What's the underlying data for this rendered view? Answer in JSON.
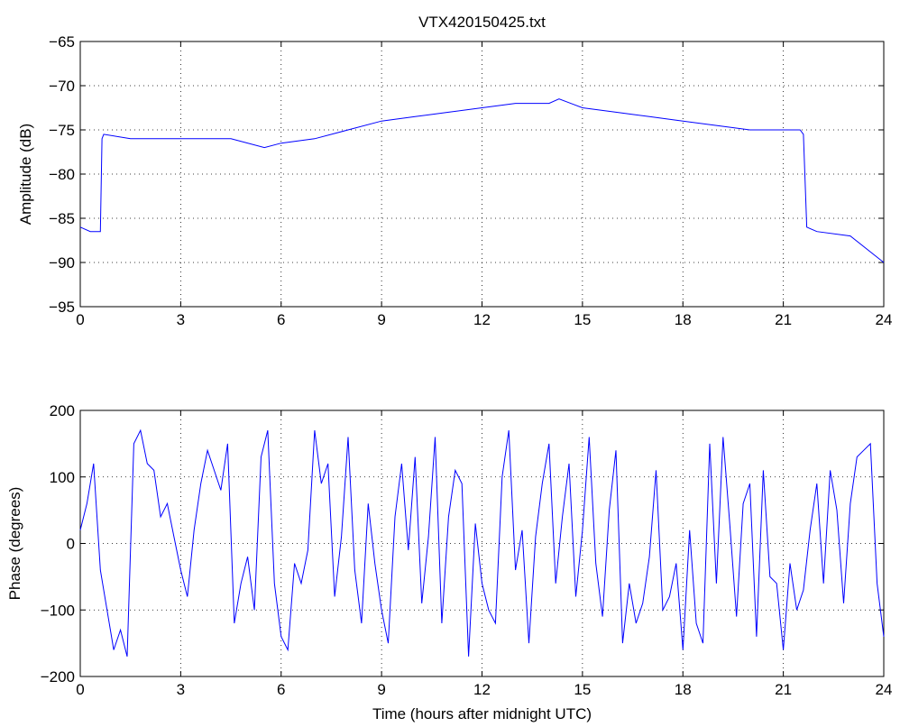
{
  "chart_data": [
    {
      "type": "line",
      "title": "VTX420150425.txt",
      "xlabel": "",
      "ylabel": "Amplitude (dB)",
      "xlim": [
        0,
        24
      ],
      "ylim": [
        -95,
        -65
      ],
      "x_ticks": [
        "0",
        "3",
        "6",
        "9",
        "12",
        "15",
        "18",
        "21",
        "24"
      ],
      "y_ticks": [
        "-95",
        "-90",
        "-85",
        "-80",
        "-75",
        "-70",
        "-65"
      ],
      "grid": true,
      "line_color": "#0000ff",
      "x": [
        0,
        0.3,
        0.6,
        0.65,
        0.7,
        1.5,
        3,
        4.5,
        5.5,
        6,
        7,
        8,
        9,
        10,
        11,
        12,
        13,
        14,
        14.3,
        15,
        16,
        17,
        18,
        19,
        20,
        21,
        21.5,
        21.6,
        21.7,
        22,
        23,
        24
      ],
      "y": [
        -86,
        -86.5,
        -86.5,
        -76,
        -75.5,
        -76,
        -76,
        -76,
        -77,
        -76.5,
        -76,
        -75,
        -74,
        -73.5,
        -73,
        -72.5,
        -72,
        -72,
        -71.5,
        -72.5,
        -73,
        -73.5,
        -74,
        -74.5,
        -75,
        -75,
        -75,
        -75.5,
        -86,
        -86.5,
        -87,
        -90
      ]
    },
    {
      "type": "line",
      "title": "",
      "xlabel": "Time (hours after midnight UTC)",
      "ylabel": "Phase (degrees)",
      "xlim": [
        0,
        24
      ],
      "ylim": [
        -200,
        200
      ],
      "x_ticks": [
        "0",
        "3",
        "6",
        "9",
        "12",
        "15",
        "18",
        "21",
        "24"
      ],
      "y_ticks": [
        "-200",
        "-100",
        "0",
        "100",
        "200"
      ],
      "grid": true,
      "line_color": "#0000ff",
      "x": [
        0,
        0.2,
        0.4,
        0.6,
        0.8,
        1.0,
        1.2,
        1.4,
        1.6,
        1.8,
        2.0,
        2.2,
        2.4,
        2.6,
        2.8,
        3.0,
        3.2,
        3.4,
        3.6,
        3.8,
        4.0,
        4.2,
        4.4,
        4.6,
        4.8,
        5.0,
        5.2,
        5.4,
        5.6,
        5.8,
        6.0,
        6.2,
        6.4,
        6.6,
        6.8,
        7.0,
        7.2,
        7.4,
        7.6,
        7.8,
        8.0,
        8.2,
        8.4,
        8.6,
        8.8,
        9.0,
        9.2,
        9.4,
        9.6,
        9.8,
        10.0,
        10.2,
        10.4,
        10.6,
        10.8,
        11.0,
        11.2,
        11.4,
        11.6,
        11.8,
        12.0,
        12.2,
        12.4,
        12.6,
        12.8,
        13.0,
        13.2,
        13.4,
        13.6,
        13.8,
        14.0,
        14.2,
        14.4,
        14.6,
        14.8,
        15.0,
        15.2,
        15.4,
        15.6,
        15.8,
        16.0,
        16.2,
        16.4,
        16.6,
        16.8,
        17.0,
        17.2,
        17.4,
        17.6,
        17.8,
        18.0,
        18.2,
        18.4,
        18.6,
        18.8,
        19.0,
        19.2,
        19.4,
        19.6,
        19.8,
        20.0,
        20.2,
        20.4,
        20.6,
        20.8,
        21.0,
        21.2,
        21.4,
        21.6,
        21.8,
        22.0,
        22.2,
        22.4,
        22.6,
        22.8,
        23.0,
        23.2,
        23.4,
        23.6,
        23.8,
        24.0
      ],
      "y": [
        20,
        60,
        120,
        -40,
        -100,
        -160,
        -130,
        -170,
        150,
        170,
        120,
        110,
        40,
        60,
        10,
        -40,
        -80,
        20,
        90,
        140,
        110,
        80,
        150,
        -120,
        -60,
        -20,
        -100,
        130,
        170,
        -60,
        -140,
        -160,
        -30,
        -60,
        -10,
        170,
        90,
        120,
        -80,
        10,
        160,
        -40,
        -120,
        60,
        -30,
        -100,
        -150,
        40,
        120,
        -10,
        130,
        -90,
        10,
        160,
        -120,
        40,
        110,
        90,
        -170,
        30,
        -60,
        -100,
        -120,
        100,
        170,
        -40,
        20,
        -150,
        10,
        90,
        150,
        -60,
        40,
        120,
        -80,
        20,
        160,
        -30,
        -110,
        50,
        140,
        -150,
        -60,
        -120,
        -90,
        -20,
        110,
        -100,
        -80,
        -30,
        -160,
        20,
        -120,
        -150,
        150,
        -60,
        160,
        30,
        -110,
        60,
        90,
        -140,
        110,
        -50,
        -60,
        -160,
        -30,
        -100,
        -70,
        20,
        90,
        -60,
        110,
        50,
        -90,
        60,
        130,
        140,
        150,
        -60,
        -140
      ]
    }
  ]
}
